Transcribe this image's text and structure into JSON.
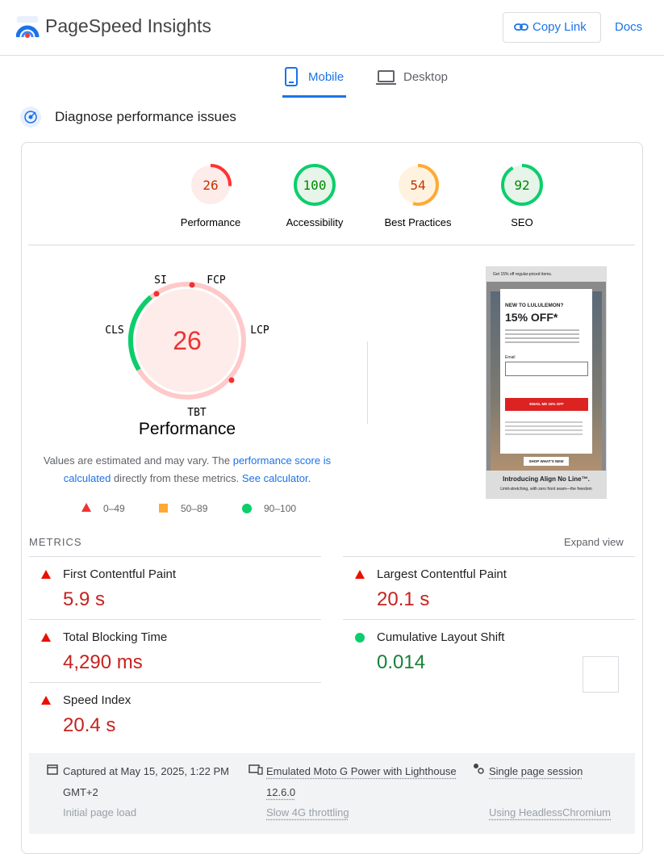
{
  "header": {
    "title": "PageSpeed Insights",
    "copy_link": "Copy Link",
    "docs": "Docs"
  },
  "tabs": [
    "Mobile",
    "Desktop"
  ],
  "section_title": "Diagnose performance issues",
  "score_range": [
    0,
    100
  ],
  "scores": [
    {
      "label": "Performance",
      "value": 26,
      "color": "#ff3333",
      "text_color": "#c33300",
      "bg": "#fdecea"
    },
    {
      "label": "Accessibility",
      "value": 100,
      "color": "#0cce6b",
      "text_color": "#008800",
      "bg": "#e6f4ea"
    },
    {
      "label": "Best Practices",
      "value": 54,
      "color": "#ffaa33",
      "text_color": "#c33300",
      "bg": "#fff3e0"
    },
    {
      "label": "SEO",
      "value": 92,
      "color": "#0cce6b",
      "text_color": "#008800",
      "bg": "#e6f4ea"
    }
  ],
  "gauge": {
    "score": 26,
    "label": "Performance",
    "metrics": [
      "SI",
      "FCP",
      "LCP",
      "TBT",
      "CLS"
    ]
  },
  "note": [
    "Values are estimated and may vary. The ",
    "performance score is calculated",
    " directly from these metrics. ",
    "See calculator",
    "."
  ],
  "legend": [
    "0–49",
    "50–89",
    "90–100"
  ],
  "thumbnail": {
    "banner": "Get 15% off regular-priced items.",
    "kicker": "NEW TO LULULEMON?",
    "headline": "15% OFF*",
    "email_label": "Email",
    "button": "EMAIL ME 15% OFF",
    "shop": "SHOP WHAT'S NEW",
    "promo": "Introducing Align No Line™.",
    "promo_sub": "Limit-stretching, with zero front seam—the freedom"
  },
  "metrics": {
    "heading": "METRICS",
    "expand": "Expand view",
    "items": [
      {
        "name": "First Contentful Paint",
        "value": "5.9 s",
        "color": "#eb0f00"
      },
      {
        "name": "Largest Contentful Paint",
        "value": "20.1 s",
        "color": "#eb0f00"
      },
      {
        "name": "Total Blocking Time",
        "value": "4,290 ms",
        "color": "#eb0f00"
      },
      {
        "name": "Cumulative Layout Shift",
        "value": "0.014",
        "color": "#0cce6b"
      },
      {
        "name": "Speed Index",
        "value": "20.4 s",
        "color": "#eb0f00"
      }
    ]
  },
  "footer": {
    "captured": "Captured at May 15, 2025, 1:22 PM",
    "timezone": "GMT+2",
    "device": "Emulated Moto G Power with Lighthouse",
    "version": "12.6.0",
    "session": "Single page session",
    "load": "Initial page load",
    "throttling": "Slow 4G throttling",
    "browser": "Using HeadlessChromium"
  }
}
